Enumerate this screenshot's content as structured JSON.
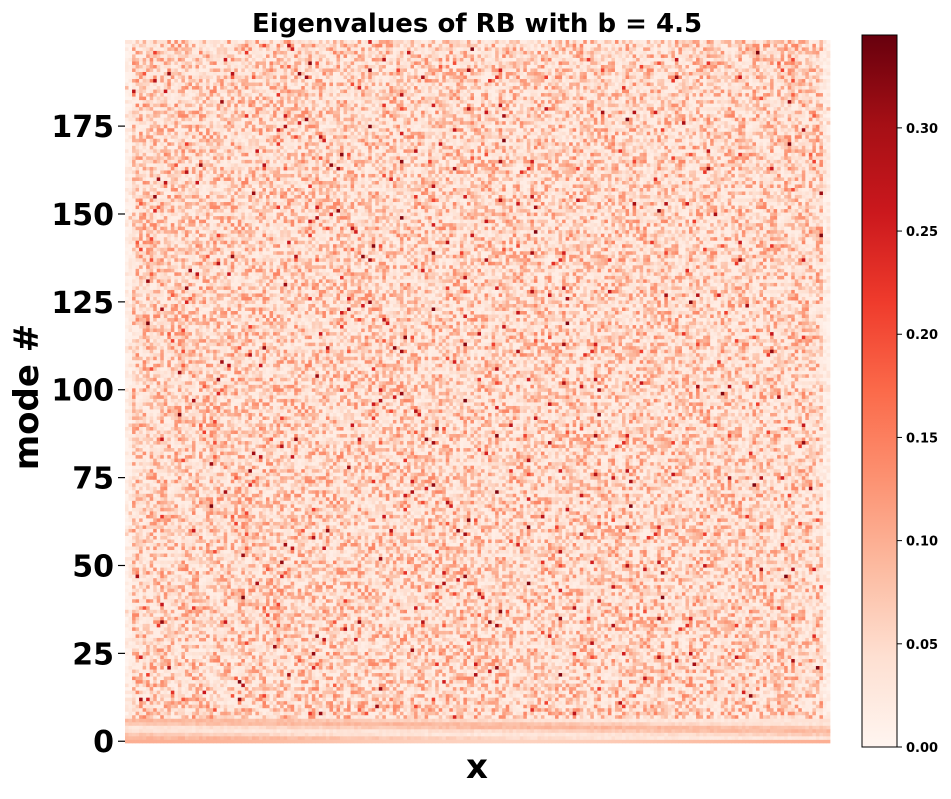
{
  "chart_data": {
    "type": "heatmap",
    "title": "Eigenvalues of RB with b = 4.5",
    "xlabel": "x",
    "ylabel": "mode #",
    "y_ticks": [
      0,
      25,
      50,
      75,
      100,
      125,
      150,
      175
    ],
    "y_tick_labels": [
      "0",
      "25",
      "50",
      "75",
      "100",
      "125",
      "150",
      "175"
    ],
    "ylim": [
      0,
      199
    ],
    "x_tick_labels": [],
    "n_modes": 200,
    "n_x": 200,
    "colormap": "Reds",
    "colormap_stops": [
      "#fff5f0",
      "#fee0d2",
      "#fcbba1",
      "#fc9272",
      "#fb6a4a",
      "#ef3b2c",
      "#cb181d",
      "#a50f15",
      "#67000d"
    ],
    "colorbar": {
      "vmin": 0.0,
      "vmax": 0.345,
      "ticks": [
        0.0,
        0.05,
        0.1,
        0.15,
        0.2,
        0.25,
        0.3
      ],
      "tick_labels": [
        "0.00",
        "0.05",
        "0.10",
        "0.15",
        "0.20",
        "0.25",
        "0.30"
      ]
    },
    "value_summary": {
      "typical_range": [
        0.0,
        0.15
      ],
      "occasional_max": 0.33,
      "low_mode_band": "modes 0-6 show smooth horizontal bands with values near 0.05-0.12"
    }
  }
}
